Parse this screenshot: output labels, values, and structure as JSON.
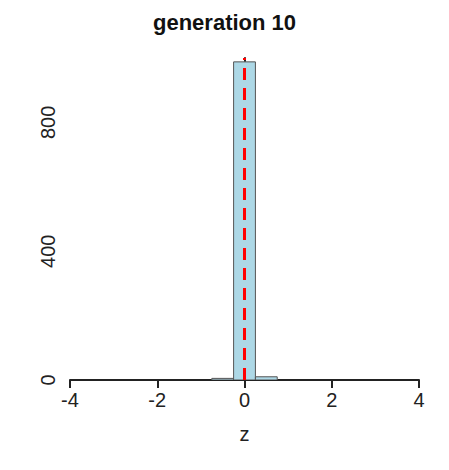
{
  "chart_data": {
    "type": "histogram",
    "title": "generation 10",
    "x_label": "z",
    "bins": [
      -0.75,
      -0.25,
      0.25,
      0.75
    ],
    "counts": [
      5,
      988,
      10
    ],
    "color": "#add8e6",
    "xlim": [
      -4,
      4
    ],
    "xticks": [
      -4,
      -2,
      0,
      2,
      4
    ],
    "ylim": [
      0,
      1000
    ],
    "yticks": [
      0,
      400,
      800
    ],
    "grid": false,
    "mean_line": {
      "x": 0,
      "color": "#ff0000",
      "line_style": "dashed"
    }
  }
}
